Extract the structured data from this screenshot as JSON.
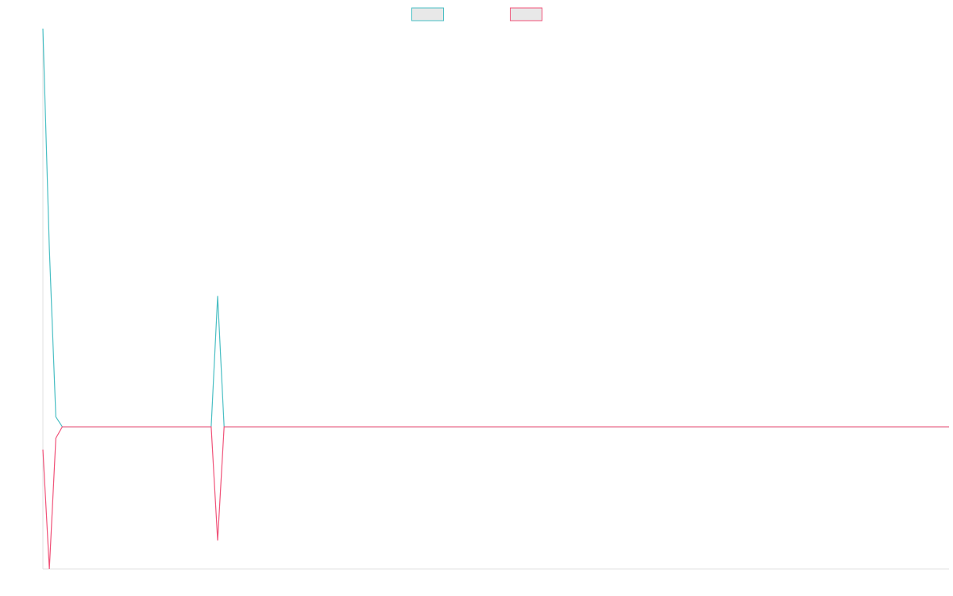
{
  "chart_data": {
    "type": "line",
    "title": "",
    "xlabel": "",
    "ylabel": "",
    "grid": false,
    "legend": {
      "placement": "top-center",
      "entries": [
        {
          "label": "",
          "color": "#4bbfc4",
          "fill": "#e8e8e8"
        },
        {
          "label": "",
          "color": "#f0547a",
          "fill": "#e8e8e8"
        }
      ]
    },
    "x": [
      0,
      1,
      2,
      3,
      26,
      27,
      28,
      140
    ],
    "xlim": [
      0,
      140
    ],
    "ylim": [
      -100,
      280
    ],
    "series": [
      {
        "color": "#4bbfc4",
        "values": [
          280,
          125,
          7,
          0,
          0,
          92,
          0,
          0
        ]
      },
      {
        "color": "#f0547a",
        "values": [
          -16,
          -100,
          -8,
          0,
          0,
          -80,
          0,
          0
        ]
      }
    ]
  }
}
